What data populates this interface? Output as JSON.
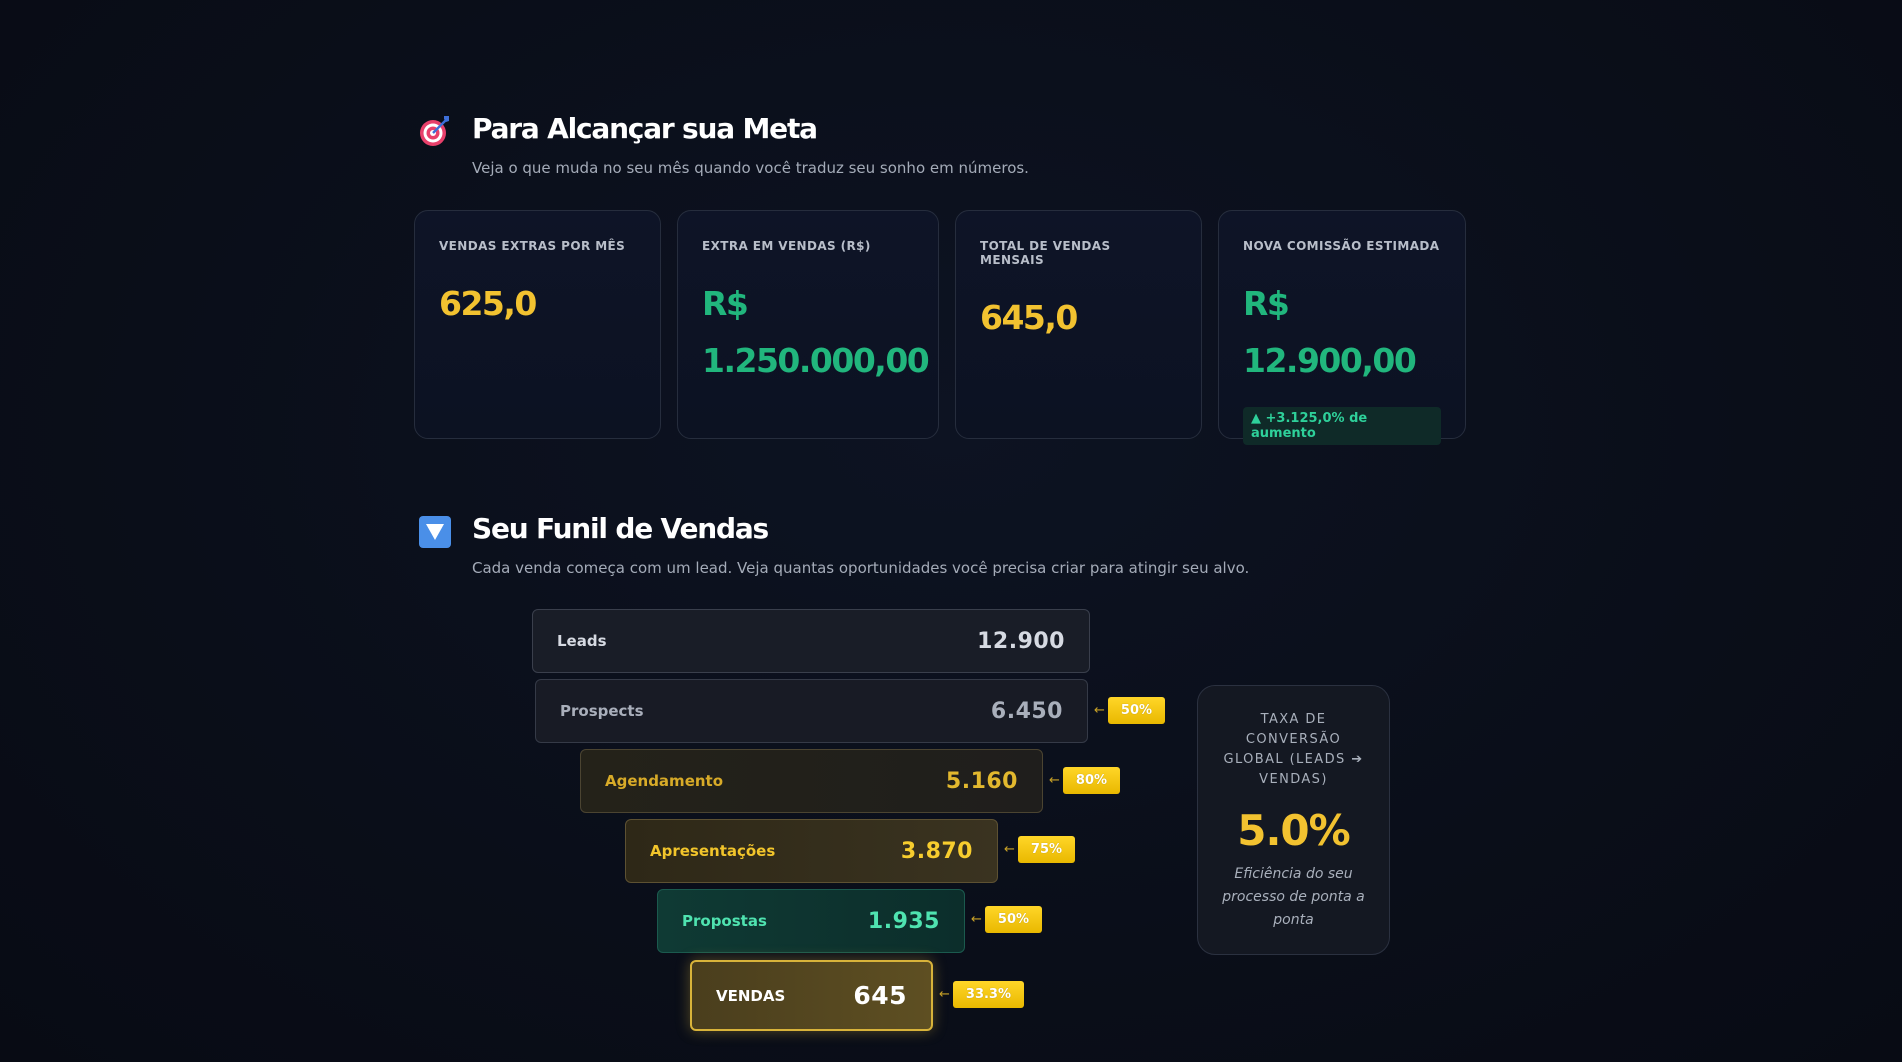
{
  "goal": {
    "title": "Para Alcançar sua Meta",
    "subtitle": "Veja o que muda no seu mês quando você traduz seu sonho em números.",
    "cards": [
      {
        "label": "VENDAS EXTRAS POR MÊS",
        "value": "625,0",
        "color": "yellow"
      },
      {
        "label": "EXTRA EM VENDAS (R$)",
        "value": "R$ 1.250.000,00",
        "color": "green"
      },
      {
        "label": "TOTAL DE VENDAS MENSAIS",
        "value": "645,0",
        "color": "yellow"
      },
      {
        "label": "NOVA COMISSÃO ESTIMADA",
        "value": "R$ 12.900,00",
        "color": "green",
        "badge": "▲ +3.125,0% de aumento"
      }
    ]
  },
  "funnel": {
    "title": "Seu Funil de Vendas",
    "subtitle": "Cada venda começa com um lead. Veja quantas oportunidades você precisa criar para atingir seu alvo.",
    "stages": [
      {
        "label": "Leads",
        "value": "12.900"
      },
      {
        "label": "Prospects",
        "value": "6.450",
        "rate": "50%"
      },
      {
        "label": "Agendamento",
        "value": "5.160",
        "rate": "80%"
      },
      {
        "label": "Apresentações",
        "value": "3.870",
        "rate": "75%"
      },
      {
        "label": "Propostas",
        "value": "1.935",
        "rate": "50%"
      },
      {
        "label": "VENDAS",
        "value": "645",
        "rate": "33.3%"
      }
    ],
    "arrow": "←",
    "global": {
      "label": "TAXA DE CONVERSÃO GLOBAL (LEADS ➔ VENDAS)",
      "value": "5.0%",
      "description": "Eficiência do seu processo de ponta a ponta"
    }
  }
}
